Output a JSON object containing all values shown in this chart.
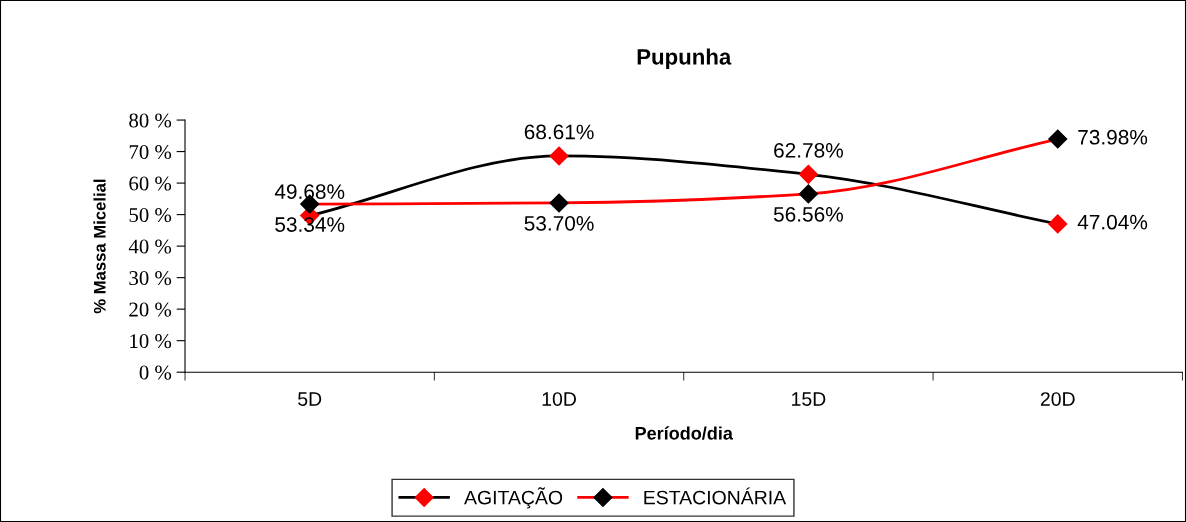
{
  "chart_data": {
    "type": "line",
    "title": "Pupunha",
    "xlabel": "Período/dia",
    "ylabel": "% Massa Micelial",
    "categories": [
      "5D",
      "10D",
      "15D",
      "20D"
    ],
    "series": [
      {
        "name": "AGITAÇÃO",
        "color": "#000000",
        "colors": [
          "#ff0000",
          "#ff0000",
          "#ff0000",
          "#ff0000"
        ],
        "values": [
          49.68,
          68.61,
          62.78,
          47.04
        ],
        "value_labels": [
          "49.68%",
          "68.61%",
          "62.78%",
          "47.04%"
        ]
      },
      {
        "name": "ESTACIONÁRIA",
        "color": "#ff0000",
        "colors": [
          "#000000",
          "#000000",
          "#000000",
          "#000000"
        ],
        "values": [
          53.34,
          53.7,
          56.56,
          73.98
        ],
        "value_labels": [
          "53.34%",
          "53.70%",
          "56.56%",
          "73.98%"
        ]
      }
    ],
    "ylim": [
      0,
      80
    ],
    "yticks": [
      {
        "value": 0,
        "label": "0 %"
      },
      {
        "value": 10,
        "label": "10 %"
      },
      {
        "value": 20,
        "label": "20 %"
      },
      {
        "value": 30,
        "label": "30 %"
      },
      {
        "value": 40,
        "label": "40 %"
      },
      {
        "value": 50,
        "label": "50 %"
      },
      {
        "value": 60,
        "label": "60 %"
      },
      {
        "value": 70,
        "label": "70 %"
      },
      {
        "value": 80,
        "label": "80 %"
      }
    ],
    "grid": false,
    "legend": "bottom",
    "marker": "diamond",
    "line_style": "solid"
  }
}
